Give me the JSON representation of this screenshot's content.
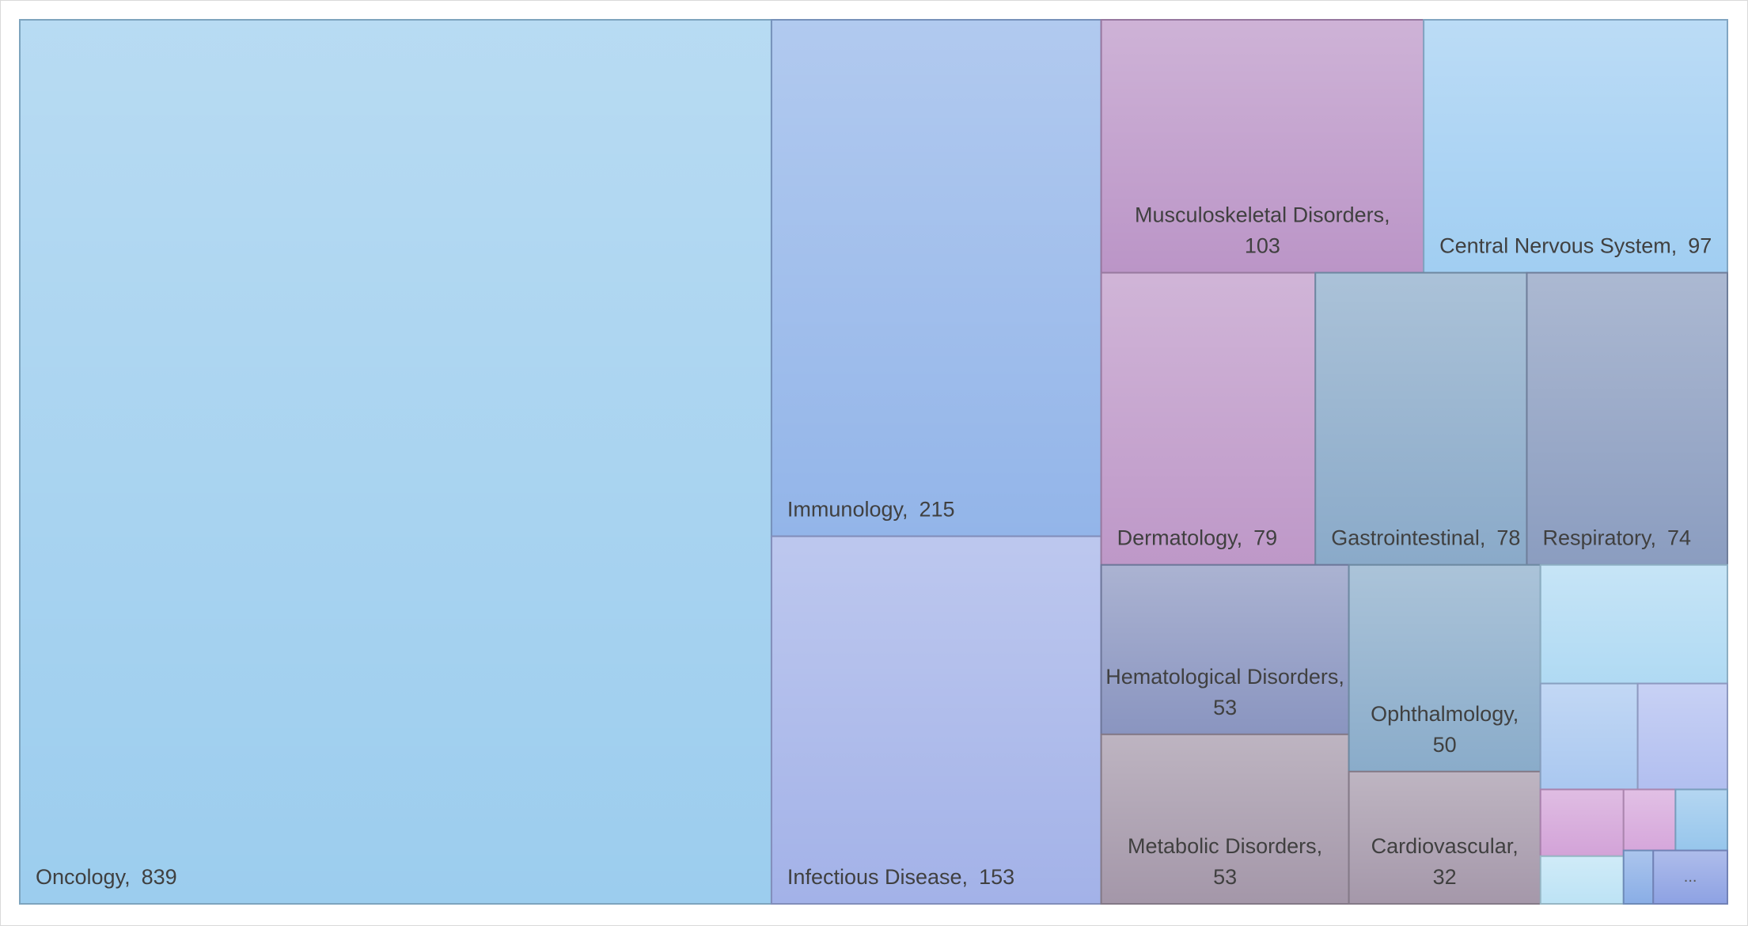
{
  "chart_data": {
    "type": "treemap",
    "separator": ",",
    "categories": [
      "Oncology",
      "Immunology",
      "Infectious Disease",
      "Musculoskeletal Disorders",
      "Central Nervous System",
      "Dermatology",
      "Gastrointestinal",
      "Respiratory",
      "Hematological Disorders",
      "Metabolic Disorders",
      "Ophthalmology",
      "Cardiovascular",
      null,
      null,
      null,
      null,
      null,
      null,
      null,
      null,
      "..."
    ],
    "values": [
      839,
      215,
      153,
      103,
      97,
      79,
      78,
      74,
      53,
      53,
      50,
      32,
      28,
      13,
      12,
      7,
      5,
      4,
      4,
      2,
      5
    ],
    "value_shown": [
      true,
      true,
      true,
      true,
      true,
      true,
      true,
      true,
      true,
      true,
      true,
      true,
      false,
      false,
      false,
      false,
      false,
      false,
      false,
      false,
      false
    ],
    "colors": [
      "#9ccdee",
      "#93b5e9",
      "#a3b2e8",
      "#bb95c7",
      "#a1cef2",
      "#be98c8",
      "#8aaac9",
      "#8b9dc0",
      "#8a95c0",
      "#a497a9",
      "#8aacca",
      "#a598aa",
      "#b0daf3",
      "#aac8f0",
      "#b2bff0",
      "#d3a3d8",
      "#bde3f5",
      "#d6a7db",
      "#97c6ec",
      "#8aaee6",
      "#8ea2e3"
    ]
  }
}
